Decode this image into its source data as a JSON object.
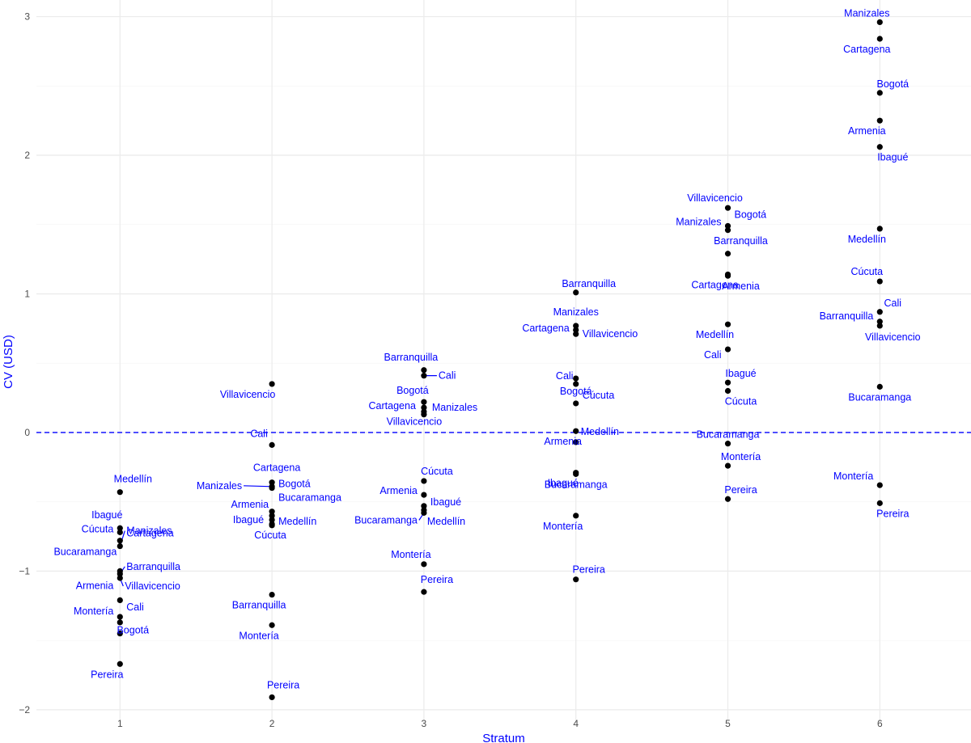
{
  "chart_data": {
    "type": "scatter",
    "xlabel": "Stratum",
    "ylabel": "CV (USD)",
    "xlim": [
      0.45,
      6.6
    ],
    "ylim": [
      -2.1,
      3.12
    ],
    "x_ticks": [
      1,
      2,
      3,
      4,
      5,
      6
    ],
    "y_ticks": [
      -2,
      -1,
      0,
      1,
      2,
      3
    ],
    "grid": true,
    "reference_line": {
      "y": 0,
      "style": "dashed",
      "color": "#0000ff"
    },
    "point_color": "#000000",
    "label_color": "#0000ff",
    "points": [
      {
        "x": 1,
        "y": -0.43,
        "label": "Medellín"
      },
      {
        "x": 1,
        "y": -0.69,
        "label": "Ibagué"
      },
      {
        "x": 1,
        "y": -0.72,
        "label": "Cúcuta"
      },
      {
        "x": 1,
        "y": -0.78,
        "label": "Cartagena"
      },
      {
        "x": 1,
        "y": -0.82,
        "label": "Manizales"
      },
      {
        "x": 1,
        "y": -1.0,
        "label": "Bucaramanga"
      },
      {
        "x": 1,
        "y": -1.02,
        "label": "Barranquilla"
      },
      {
        "x": 1,
        "y": -1.05,
        "label": "Villavicencio"
      },
      {
        "x": 1,
        "y": -1.21,
        "label": "Armenia"
      },
      {
        "x": 1,
        "y": -1.33,
        "label": "Cali"
      },
      {
        "x": 1,
        "y": -1.37,
        "label": "Montería"
      },
      {
        "x": 1,
        "y": -1.45,
        "label": "Bogotá"
      },
      {
        "x": 1,
        "y": -1.67,
        "label": "Pereira"
      },
      {
        "x": 2,
        "y": 0.35,
        "label": "Villavicencio"
      },
      {
        "x": 2,
        "y": -0.09,
        "label": "Cali"
      },
      {
        "x": 2,
        "y": -0.36,
        "label": "Cartagena"
      },
      {
        "x": 2,
        "y": -0.39,
        "label": "Manizales"
      },
      {
        "x": 2,
        "y": -0.4,
        "label": "Bogotá"
      },
      {
        "x": 2,
        "y": -0.57,
        "label": "Bucaramanga"
      },
      {
        "x": 2,
        "y": -0.6,
        "label": "Armenia"
      },
      {
        "x": 2,
        "y": -0.63,
        "label": "Ibagué"
      },
      {
        "x": 2,
        "y": -0.67,
        "label": "Cúcuta"
      },
      {
        "x": 2,
        "y": -0.66,
        "label": "Medellín"
      },
      {
        "x": 2,
        "y": -1.17,
        "label": "Barranquilla"
      },
      {
        "x": 2,
        "y": -1.39,
        "label": "Montería"
      },
      {
        "x": 2,
        "y": -1.91,
        "label": "Pereira"
      },
      {
        "x": 3,
        "y": 0.45,
        "label": "Barranquilla"
      },
      {
        "x": 3,
        "y": 0.41,
        "label": "Cali"
      },
      {
        "x": 3,
        "y": 0.22,
        "label": "Bogotá"
      },
      {
        "x": 3,
        "y": 0.18,
        "label": "Cartagena"
      },
      {
        "x": 3,
        "y": 0.15,
        "label": "Manizales"
      },
      {
        "x": 3,
        "y": 0.13,
        "label": "Villavicencio"
      },
      {
        "x": 3,
        "y": -0.35,
        "label": "Cúcuta"
      },
      {
        "x": 3,
        "y": -0.45,
        "label": "Armenia"
      },
      {
        "x": 3,
        "y": -0.53,
        "label": "Ibagué"
      },
      {
        "x": 3,
        "y": -0.56,
        "label": "Medellín"
      },
      {
        "x": 3,
        "y": -0.58,
        "label": "Bucaramanga"
      },
      {
        "x": 3,
        "y": -0.95,
        "label": "Montería"
      },
      {
        "x": 3,
        "y": -1.15,
        "label": "Pereira"
      },
      {
        "x": 4,
        "y": 1.01,
        "label": "Barranquilla"
      },
      {
        "x": 4,
        "y": 0.77,
        "label": "Manizales"
      },
      {
        "x": 4,
        "y": 0.74,
        "label": "Cartagena"
      },
      {
        "x": 4,
        "y": 0.71,
        "label": "Villavicencio"
      },
      {
        "x": 4,
        "y": 0.39,
        "label": "Bogotá"
      },
      {
        "x": 4,
        "y": 0.35,
        "label": "Cali"
      },
      {
        "x": 4,
        "y": 0.21,
        "label": "Cúcuta"
      },
      {
        "x": 4,
        "y": 0.01,
        "label": "Armenia"
      },
      {
        "x": 4,
        "y": -0.07,
        "label": "Medellín"
      },
      {
        "x": 4,
        "y": -0.29,
        "label": "Ibagué"
      },
      {
        "x": 4,
        "y": -0.3,
        "label": "Bucaramanga"
      },
      {
        "x": 4,
        "y": -0.6,
        "label": "Montería"
      },
      {
        "x": 4,
        "y": -1.06,
        "label": "Pereira"
      },
      {
        "x": 5,
        "y": 1.62,
        "label": "Villavicencio"
      },
      {
        "x": 5,
        "y": 1.49,
        "label": "Bogotá"
      },
      {
        "x": 5,
        "y": 1.46,
        "label": "Manizales"
      },
      {
        "x": 5,
        "y": 1.29,
        "label": "Barranquilla"
      },
      {
        "x": 5,
        "y": 1.14,
        "label": "Cartagena"
      },
      {
        "x": 5,
        "y": 1.13,
        "label": "Armenia"
      },
      {
        "x": 5,
        "y": 0.78,
        "label": "Medellín"
      },
      {
        "x": 5,
        "y": 0.6,
        "label": "Cali"
      },
      {
        "x": 5,
        "y": 0.36,
        "label": "Ibagué"
      },
      {
        "x": 5,
        "y": 0.3,
        "label": "Cúcuta"
      },
      {
        "x": 5,
        "y": -0.08,
        "label": "Bucaramanga"
      },
      {
        "x": 5,
        "y": -0.24,
        "label": "Montería"
      },
      {
        "x": 5,
        "y": -0.48,
        "label": "Pereira"
      },
      {
        "x": 6,
        "y": 2.96,
        "label": "Manizales"
      },
      {
        "x": 6,
        "y": 2.84,
        "label": "Cartagena"
      },
      {
        "x": 6,
        "y": 2.45,
        "label": "Bogotá"
      },
      {
        "x": 6,
        "y": 2.25,
        "label": "Armenia"
      },
      {
        "x": 6,
        "y": 2.06,
        "label": "Ibagué"
      },
      {
        "x": 6,
        "y": 1.47,
        "label": "Medellín"
      },
      {
        "x": 6,
        "y": 1.09,
        "label": "Cúcuta"
      },
      {
        "x": 6,
        "y": 0.87,
        "label": "Cali"
      },
      {
        "x": 6,
        "y": 0.8,
        "label": "Barranquilla"
      },
      {
        "x": 6,
        "y": 0.77,
        "label": "Villavicencio"
      },
      {
        "x": 6,
        "y": 0.33,
        "label": "Bucaramanga"
      },
      {
        "x": 6,
        "y": -0.38,
        "label": "Montería"
      },
      {
        "x": 6,
        "y": -0.51,
        "label": "Pereira"
      }
    ]
  }
}
